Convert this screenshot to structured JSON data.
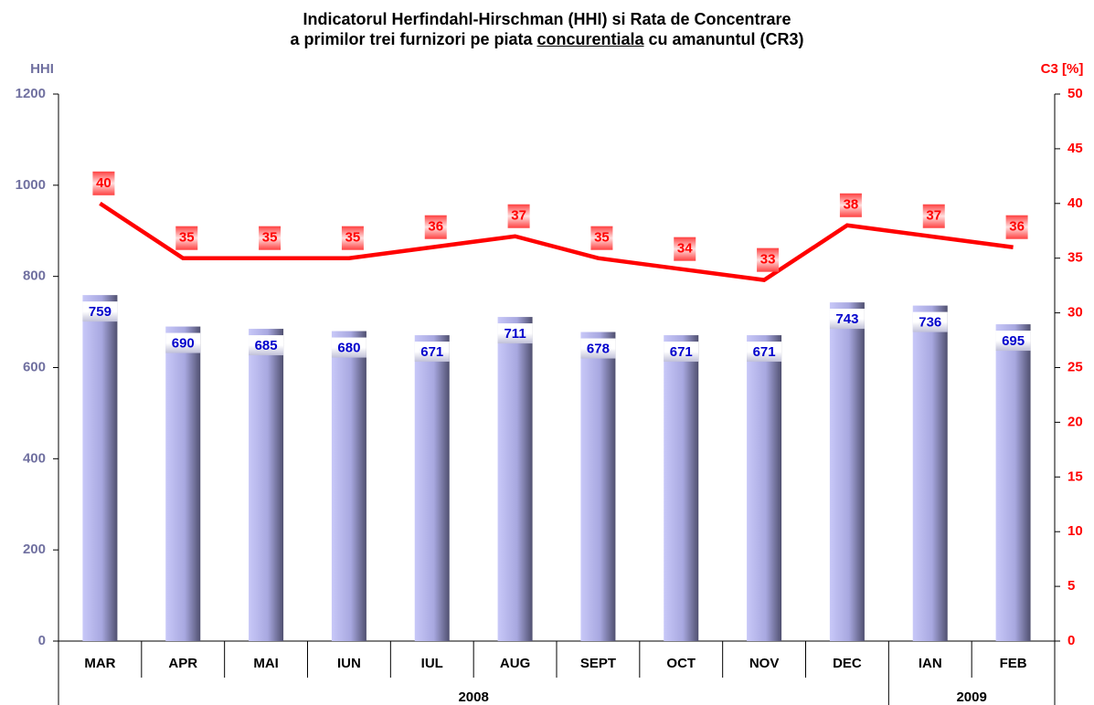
{
  "chart_data": {
    "type": "bar_line",
    "title": {
      "line1": "Indicatorul Herfindahl-Hirschman (HHI) si Rata de Concentrare",
      "line2": [
        "a primilor trei furnizori pe piata",
        "concurentiala",
        "cu amanuntul (CR3)"
      ]
    },
    "y_label": "HHI",
    "y2_label": "C3 [%]",
    "categories": [
      "MAR",
      "APR",
      "MAI",
      "IUN",
      "IUL",
      "AUG",
      "SEPT",
      "OCT",
      "NOV",
      "DEC",
      "IAN",
      "FEB"
    ],
    "groups": [
      {
        "label": "2008",
        "count": 10
      },
      {
        "label": "2009",
        "count": 2
      }
    ],
    "series": [
      {
        "name": "HHI",
        "type": "bar",
        "color": "#b4b4ec",
        "label_color": "#0000cc",
        "values": [
          759,
          690,
          685,
          680,
          671,
          711,
          678,
          671,
          671,
          743,
          736,
          695
        ]
      },
      {
        "name": "C3",
        "type": "line",
        "axis": "y2",
        "color": "#ff0000",
        "label_color": "#ff0000",
        "values": [
          40,
          35,
          35,
          35,
          36,
          37,
          35,
          34,
          33,
          38,
          37,
          36
        ]
      }
    ],
    "ylim": [
      0,
      1200
    ],
    "yticks": [
      0,
      200,
      400,
      600,
      800,
      1000,
      1200
    ],
    "y_color": "#7070a0",
    "y2lim": [
      0,
      50
    ],
    "y2ticks": [
      0,
      5,
      10,
      15,
      20,
      25,
      30,
      35,
      40,
      45,
      50
    ],
    "y2_color": "#ff0000",
    "grid": false
  }
}
